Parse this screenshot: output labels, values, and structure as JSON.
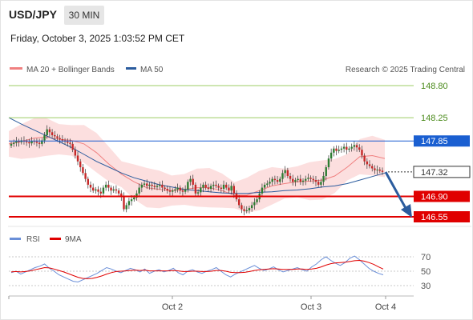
{
  "header": {
    "symbol": "USD/JPY",
    "interval": "30 MIN",
    "datetime": "Friday, October 3, 2025 1:03:52 PM CET"
  },
  "legend": {
    "ma20_label": "MA 20 + Bollinger Bands",
    "ma50_label": "MA 50",
    "credit": "Research © 2025 Trading Central"
  },
  "rsi_legend": {
    "rsi_label": "RSI",
    "ma_label": "9MA"
  },
  "colors": {
    "bull_candle": "#2e7d32",
    "bear_candle": "#c62828",
    "bollinger": "#f9b7b7",
    "ma20": "#f08080",
    "ma50": "#2b5c9e",
    "pivot_line": "#e00000",
    "target_line": "#9ccc65",
    "last_price": "#1a5fd1",
    "arrow": "#2b5c9e",
    "rsi": "#6a8fd8",
    "rsi_ma": "#e00000"
  },
  "chart_data": [
    {
      "type": "candlestick",
      "title": "USD/JPY 30 MIN",
      "x_ticks": [
        "Oct 2",
        "Oct 3",
        "Oct 4"
      ],
      "ylim": [
        146.5,
        148.9
      ],
      "price_levels": [
        {
          "value": 148.8,
          "label": "148.80",
          "role": "target"
        },
        {
          "value": 148.25,
          "label": "148.25",
          "role": "target"
        },
        {
          "value": 147.85,
          "label": "147.85",
          "role": "resistance"
        },
        {
          "value": 147.32,
          "label": "147.32",
          "role": "last"
        },
        {
          "value": 146.9,
          "label": "146.90",
          "role": "pivot"
        },
        {
          "value": 146.55,
          "label": "146.55",
          "role": "pivot"
        }
      ],
      "closes": [
        147.8,
        147.82,
        147.85,
        147.83,
        147.86,
        147.84,
        147.83,
        147.81,
        147.85,
        147.84,
        147.82,
        147.8,
        147.86,
        147.95,
        148.05,
        148.0,
        147.95,
        147.93,
        147.9,
        147.88,
        147.86,
        147.84,
        147.82,
        147.8,
        147.7,
        147.6,
        147.5,
        147.4,
        147.3,
        147.2,
        147.1,
        147.05,
        147.0,
        147.02,
        146.98,
        146.95,
        147.05,
        147.1,
        147.05,
        147.0,
        147.02,
        147.0,
        146.95,
        146.9,
        146.68,
        146.75,
        146.82,
        146.85,
        146.88,
        146.95,
        147.05,
        147.1,
        147.12,
        147.08,
        147.1,
        147.08,
        147.06,
        147.08,
        147.1,
        147.05,
        147.03,
        147.0,
        146.98,
        147.0,
        147.02,
        147.05,
        147.0,
        146.98,
        147.02,
        147.15,
        147.2,
        147.1,
        146.95,
        146.97,
        147.05,
        147.1,
        147.05,
        147.03,
        147.08,
        147.1,
        147.08,
        147.05,
        147.03,
        147.1,
        147.05,
        147.0,
        147.08,
        146.95,
        146.85,
        146.75,
        146.68,
        146.65,
        146.66,
        146.7,
        146.75,
        146.8,
        146.85,
        146.95,
        147.05,
        147.1,
        147.12,
        147.15,
        147.2,
        147.18,
        147.15,
        147.2,
        147.3,
        147.35,
        147.25,
        147.2,
        147.15,
        147.18,
        147.2,
        147.15,
        147.17,
        147.2,
        147.22,
        147.2,
        147.18,
        147.15,
        147.1,
        147.15,
        147.25,
        147.4,
        147.55,
        147.65,
        147.72,
        147.68,
        147.7,
        147.72,
        147.75,
        147.7,
        147.72,
        147.75,
        147.78,
        147.74,
        147.7,
        147.6,
        147.5,
        147.45,
        147.42,
        147.38,
        147.35,
        147.36,
        147.34,
        147.32
      ],
      "series": [
        {
          "name": "MA 20 + Bollinger Bands",
          "values": [
            147.8,
            147.84,
            147.9,
            147.92,
            147.88,
            147.86,
            147.8,
            147.65,
            147.45,
            147.28,
            147.15,
            147.05,
            147.02,
            147.0,
            147.02,
            147.05,
            147.05,
            147.0,
            146.92,
            146.92,
            147.0,
            147.08,
            147.12,
            147.15,
            147.16,
            147.18,
            147.25,
            147.4,
            147.58,
            147.6,
            147.55
          ]
        },
        {
          "name": "MA 50",
          "values": [
            148.25,
            148.14,
            148.04,
            147.94,
            147.84,
            147.74,
            147.62,
            147.5,
            147.4,
            147.3,
            147.22,
            147.16,
            147.1,
            147.06,
            147.02,
            147.0,
            146.98,
            146.96,
            146.95,
            146.95,
            146.97,
            146.98,
            147.0,
            147.01,
            147.03,
            147.06,
            147.08,
            147.12,
            147.18,
            147.24,
            147.3
          ]
        }
      ]
    },
    {
      "type": "line",
      "title": "RSI",
      "y_ticks": [
        70,
        50,
        30
      ],
      "ylim": [
        25,
        75
      ],
      "series": [
        {
          "name": "RSI",
          "values": [
            48,
            50,
            46,
            49,
            52,
            55,
            57,
            60,
            54,
            50,
            45,
            42,
            39,
            36,
            35,
            38,
            41,
            44,
            47,
            51,
            55,
            53,
            50,
            48,
            51,
            54,
            52,
            49,
            53,
            47,
            50,
            52,
            49,
            51,
            54,
            48,
            45,
            50,
            52,
            49,
            47,
            50,
            52,
            55,
            50,
            45,
            42,
            46,
            49,
            52,
            55,
            58,
            54,
            51,
            53,
            56,
            52,
            49,
            51,
            53,
            55,
            52,
            50,
            56,
            60,
            66,
            70,
            65,
            61,
            58,
            62,
            68,
            71,
            66,
            60,
            54,
            50,
            47,
            45
          ]
        },
        {
          "name": "9MA",
          "values": [
            49,
            49.5,
            49,
            49.5,
            50.5,
            52,
            53.5,
            55,
            54.5,
            53,
            51,
            49,
            46.5,
            44,
            41.5,
            40,
            39.5,
            40,
            41.5,
            43.5,
            46,
            48,
            49.5,
            50,
            50.5,
            51,
            51.5,
            51,
            51.5,
            50.5,
            50.5,
            50.5,
            50.5,
            50.5,
            51,
            50.5,
            49.5,
            49.5,
            50,
            50,
            49.5,
            49.5,
            50,
            51,
            51,
            50,
            48.5,
            48,
            48,
            48.5,
            49.5,
            51,
            52,
            52.5,
            53,
            53.5,
            53,
            52.5,
            52.5,
            52.5,
            53,
            53,
            52.5,
            53,
            54,
            56,
            58.5,
            60.5,
            61.5,
            62,
            62.5,
            63.5,
            64.5,
            65,
            64,
            62,
            59.5,
            56,
            53
          ]
        }
      ]
    }
  ]
}
